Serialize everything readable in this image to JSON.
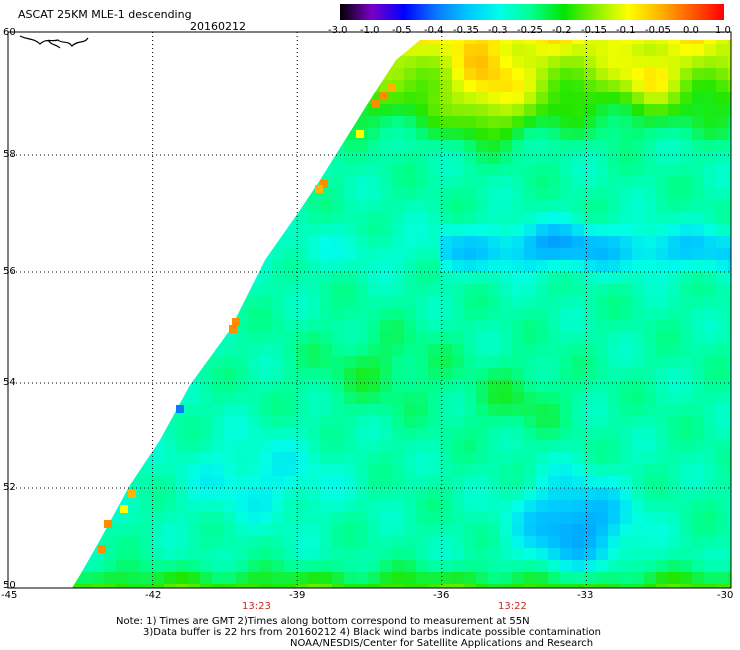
{
  "header": {
    "title": "ASCAT 25KM MLE-1 descending",
    "date": "20160212"
  },
  "colorbar": {
    "labels": [
      "-3.0",
      "-1.0",
      "-0.5",
      "-0.4",
      "-0.35",
      "-0.3",
      "-0.25",
      "-0.2",
      "-0.15",
      "-0.1",
      "-0.05",
      "0.0",
      "1.0"
    ],
    "colors": [
      "#000000",
      "#7a00c8",
      "#0000ff",
      "#0a78ff",
      "#00c8ff",
      "#00ffe6",
      "#00ff8c",
      "#00e600",
      "#8cf000",
      "#ffff00",
      "#ffb400",
      "#ff5a00",
      "#ff0000"
    ]
  },
  "axes": {
    "lat_labels": [
      "60",
      "58",
      "56",
      "54",
      "52",
      "50"
    ],
    "lon_labels": [
      "-45",
      "-42",
      "-39",
      "-36",
      "-33",
      "-30"
    ]
  },
  "times": [
    "13:23",
    "13:22"
  ],
  "notes": {
    "line1": "Note: 1) Times are GMT 2)Times along bottom correspond to measurement at 55N",
    "line2": "3)Data buffer is 22 hrs from 20160212 4) Black wind barbs indicate possible contamination",
    "line3": "NOAA/NESDIS/Center for Satellite Applications and Research"
  }
}
